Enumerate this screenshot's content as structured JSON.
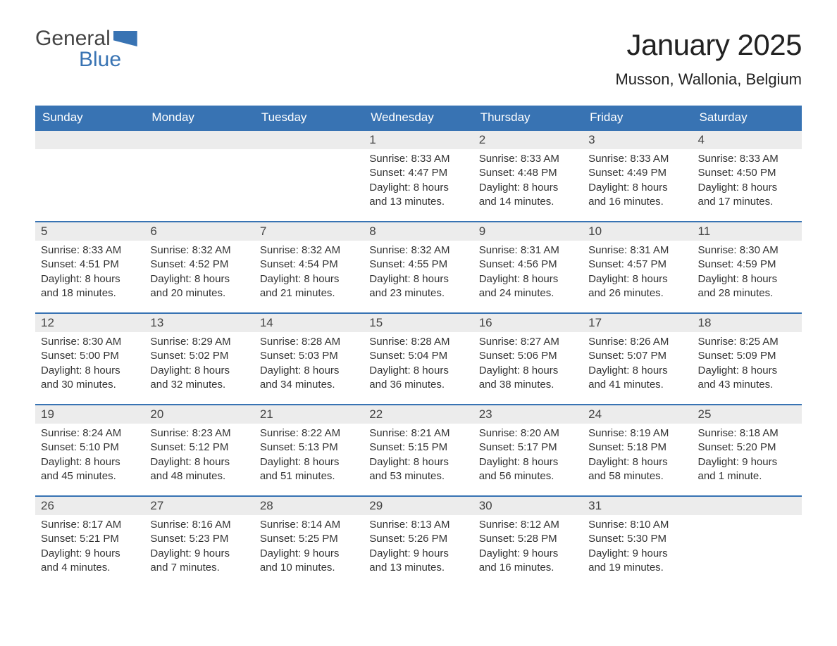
{
  "logo": {
    "text1": "General",
    "text2": "Blue"
  },
  "title": "January 2025",
  "location": "Musson, Wallonia, Belgium",
  "colors": {
    "header_bg": "#3873b3",
    "header_text": "#ffffff",
    "daynum_bg": "#ececec",
    "text": "#333333",
    "week_border": "#3873b3"
  },
  "typography": {
    "title_fontsize": 42,
    "location_fontsize": 22,
    "header_fontsize": 17,
    "daynum_fontsize": 17,
    "body_fontsize": 15
  },
  "day_headers": [
    "Sunday",
    "Monday",
    "Tuesday",
    "Wednesday",
    "Thursday",
    "Friday",
    "Saturday"
  ],
  "labels": {
    "sunrise": "Sunrise: ",
    "sunset": "Sunset: ",
    "daylight": "Daylight: "
  },
  "weeks": [
    [
      null,
      null,
      null,
      {
        "n": "1",
        "sunrise": "8:33 AM",
        "sunset": "4:47 PM",
        "daylight": "8 hours and 13 minutes."
      },
      {
        "n": "2",
        "sunrise": "8:33 AM",
        "sunset": "4:48 PM",
        "daylight": "8 hours and 14 minutes."
      },
      {
        "n": "3",
        "sunrise": "8:33 AM",
        "sunset": "4:49 PM",
        "daylight": "8 hours and 16 minutes."
      },
      {
        "n": "4",
        "sunrise": "8:33 AM",
        "sunset": "4:50 PM",
        "daylight": "8 hours and 17 minutes."
      }
    ],
    [
      {
        "n": "5",
        "sunrise": "8:33 AM",
        "sunset": "4:51 PM",
        "daylight": "8 hours and 18 minutes."
      },
      {
        "n": "6",
        "sunrise": "8:32 AM",
        "sunset": "4:52 PM",
        "daylight": "8 hours and 20 minutes."
      },
      {
        "n": "7",
        "sunrise": "8:32 AM",
        "sunset": "4:54 PM",
        "daylight": "8 hours and 21 minutes."
      },
      {
        "n": "8",
        "sunrise": "8:32 AM",
        "sunset": "4:55 PM",
        "daylight": "8 hours and 23 minutes."
      },
      {
        "n": "9",
        "sunrise": "8:31 AM",
        "sunset": "4:56 PM",
        "daylight": "8 hours and 24 minutes."
      },
      {
        "n": "10",
        "sunrise": "8:31 AM",
        "sunset": "4:57 PM",
        "daylight": "8 hours and 26 minutes."
      },
      {
        "n": "11",
        "sunrise": "8:30 AM",
        "sunset": "4:59 PM",
        "daylight": "8 hours and 28 minutes."
      }
    ],
    [
      {
        "n": "12",
        "sunrise": "8:30 AM",
        "sunset": "5:00 PM",
        "daylight": "8 hours and 30 minutes."
      },
      {
        "n": "13",
        "sunrise": "8:29 AM",
        "sunset": "5:02 PM",
        "daylight": "8 hours and 32 minutes."
      },
      {
        "n": "14",
        "sunrise": "8:28 AM",
        "sunset": "5:03 PM",
        "daylight": "8 hours and 34 minutes."
      },
      {
        "n": "15",
        "sunrise": "8:28 AM",
        "sunset": "5:04 PM",
        "daylight": "8 hours and 36 minutes."
      },
      {
        "n": "16",
        "sunrise": "8:27 AM",
        "sunset": "5:06 PM",
        "daylight": "8 hours and 38 minutes."
      },
      {
        "n": "17",
        "sunrise": "8:26 AM",
        "sunset": "5:07 PM",
        "daylight": "8 hours and 41 minutes."
      },
      {
        "n": "18",
        "sunrise": "8:25 AM",
        "sunset": "5:09 PM",
        "daylight": "8 hours and 43 minutes."
      }
    ],
    [
      {
        "n": "19",
        "sunrise": "8:24 AM",
        "sunset": "5:10 PM",
        "daylight": "8 hours and 45 minutes."
      },
      {
        "n": "20",
        "sunrise": "8:23 AM",
        "sunset": "5:12 PM",
        "daylight": "8 hours and 48 minutes."
      },
      {
        "n": "21",
        "sunrise": "8:22 AM",
        "sunset": "5:13 PM",
        "daylight": "8 hours and 51 minutes."
      },
      {
        "n": "22",
        "sunrise": "8:21 AM",
        "sunset": "5:15 PM",
        "daylight": "8 hours and 53 minutes."
      },
      {
        "n": "23",
        "sunrise": "8:20 AM",
        "sunset": "5:17 PM",
        "daylight": "8 hours and 56 minutes."
      },
      {
        "n": "24",
        "sunrise": "8:19 AM",
        "sunset": "5:18 PM",
        "daylight": "8 hours and 58 minutes."
      },
      {
        "n": "25",
        "sunrise": "8:18 AM",
        "sunset": "5:20 PM",
        "daylight": "9 hours and 1 minute."
      }
    ],
    [
      {
        "n": "26",
        "sunrise": "8:17 AM",
        "sunset": "5:21 PM",
        "daylight": "9 hours and 4 minutes."
      },
      {
        "n": "27",
        "sunrise": "8:16 AM",
        "sunset": "5:23 PM",
        "daylight": "9 hours and 7 minutes."
      },
      {
        "n": "28",
        "sunrise": "8:14 AM",
        "sunset": "5:25 PM",
        "daylight": "9 hours and 10 minutes."
      },
      {
        "n": "29",
        "sunrise": "8:13 AM",
        "sunset": "5:26 PM",
        "daylight": "9 hours and 13 minutes."
      },
      {
        "n": "30",
        "sunrise": "8:12 AM",
        "sunset": "5:28 PM",
        "daylight": "9 hours and 16 minutes."
      },
      {
        "n": "31",
        "sunrise": "8:10 AM",
        "sunset": "5:30 PM",
        "daylight": "9 hours and 19 minutes."
      },
      null
    ]
  ]
}
